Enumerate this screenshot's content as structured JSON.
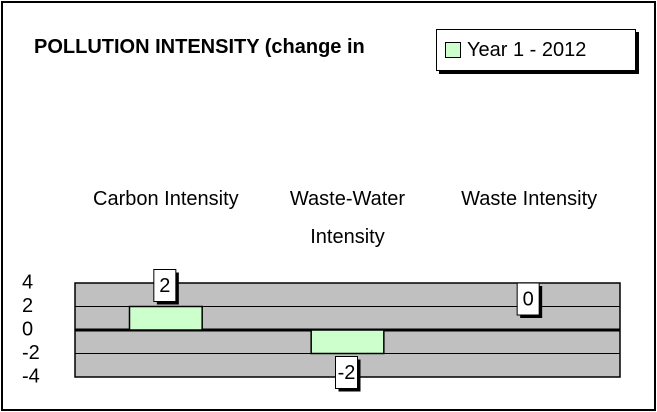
{
  "chart_data": {
    "type": "bar",
    "title": "POLLUTION INTENSITY (change in",
    "categories": [
      "Carbon Intensity",
      "Waste-Water Intensity",
      "Waste Intensity"
    ],
    "series": [
      {
        "name": "Year 1 - 2012",
        "color": "#ccffcc",
        "values": [
          2,
          -2,
          0
        ]
      }
    ],
    "ylim": [
      -4,
      4
    ],
    "yticks": [
      4,
      2,
      0,
      -2,
      -4
    ],
    "grid": true,
    "plot_background": "#c0c0c0",
    "legend": "top-right"
  }
}
